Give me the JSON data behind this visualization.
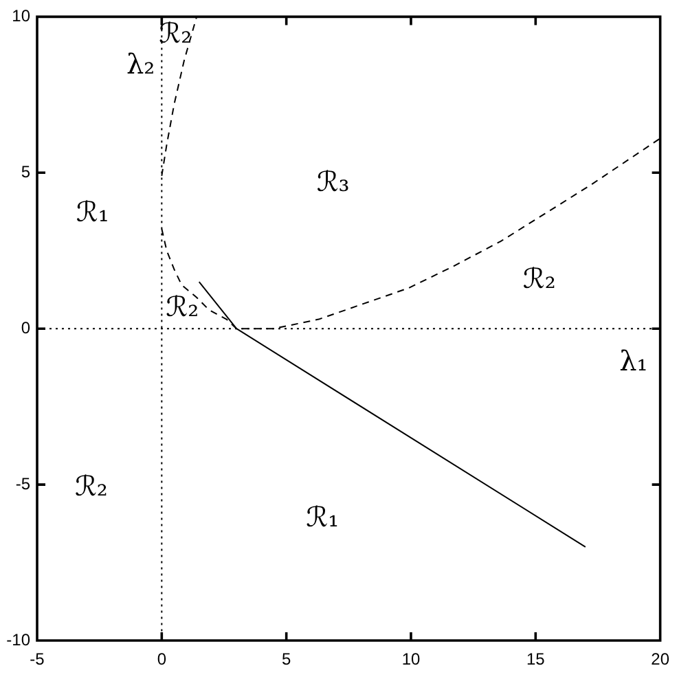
{
  "chart_data": {
    "type": "line",
    "xlim": [
      -5,
      20
    ],
    "ylim": [
      -10,
      10
    ],
    "xticks": [
      -5,
      0,
      5,
      10,
      15,
      20
    ],
    "yticks": [
      -10,
      -5,
      0,
      5,
      10
    ],
    "series": [
      {
        "color": "#000000",
        "line_style": "solid",
        "x": [
          1.5,
          3,
          17
        ],
        "values": [
          1.5,
          0,
          -7
        ]
      },
      {
        "color": "#000000",
        "line_style": "dashed",
        "x": [
          0,
          0.2,
          0.5,
          0.8,
          1.4,
          1.9,
          2.6,
          3,
          3.7,
          4.5,
          6.3,
          8.1,
          9.9,
          11.7,
          13.6,
          15.4,
          17.2,
          20
        ],
        "values": [
          3.2,
          2.5,
          1.9,
          1.4,
          1,
          0.6,
          0.3,
          0,
          0,
          0,
          0.3,
          0.8,
          1.3,
          2,
          2.8,
          3.7,
          4.6,
          6.1
        ]
      },
      {
        "color": "#000000",
        "line_style": "dashed",
        "x": [
          0,
          0.2,
          0.5,
          0.9,
          1.4
        ],
        "values": [
          4.9,
          5.9,
          7.2,
          8.6,
          10
        ]
      }
    ],
    "ref_lines": [
      {
        "axis": "x",
        "value": 0,
        "label": "λ₂",
        "color": "#000000",
        "line_style": "dotted"
      },
      {
        "axis": "y",
        "value": 0,
        "label": "λ₁",
        "color": "#000000",
        "line_style": "dotted"
      }
    ],
    "annotations": [
      "ℛ₁",
      "ℛ₂",
      "ℛ₃",
      "ℛ₂",
      "ℛ₂",
      "ℛ₂",
      "ℛ₁"
    ]
  }
}
